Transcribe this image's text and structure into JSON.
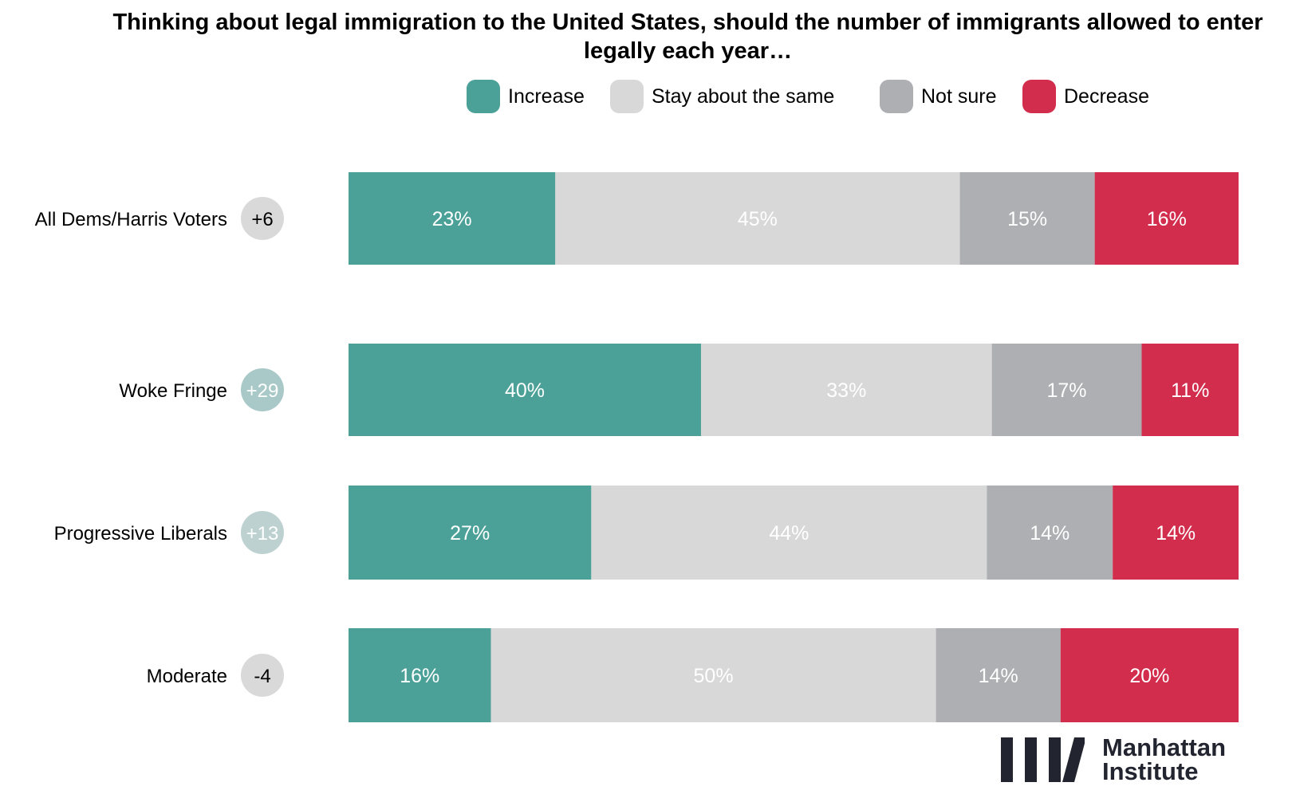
{
  "chart_data": {
    "type": "bar",
    "orientation": "horizontal-stacked-100",
    "title": "Thinking about legal immigration to the United States, should the number of immigrants allowed to enter legally each year…",
    "xlabel": "",
    "ylabel": "",
    "xlim": [
      0,
      100
    ],
    "grid": false,
    "legend_position": "top-center",
    "categories": [
      "All Dems/Harris Voters",
      "Woke Fringe",
      "Progressive Liberals",
      "Moderate"
    ],
    "net_badges": [
      {
        "label": "+6",
        "color": "#d9d9d9",
        "text_color": "#000000"
      },
      {
        "label": "+29",
        "color": "#a8c9c7",
        "text_color": "#ffffff"
      },
      {
        "label": "+13",
        "color": "#bdd1d1",
        "text_color": "#ffffff"
      },
      {
        "label": "-4",
        "color": "#d9d9d9",
        "text_color": "#000000"
      }
    ],
    "series": [
      {
        "name": "Increase",
        "color": "#4ba198",
        "values": [
          23,
          40,
          27,
          16
        ],
        "labels": [
          "23%",
          "40%",
          "27%",
          "16%"
        ]
      },
      {
        "name": "Stay about the same",
        "color": "#d8d8d8",
        "values": [
          45,
          33,
          44,
          50
        ],
        "labels": [
          "45%",
          "33%",
          "44%",
          "50%"
        ]
      },
      {
        "name": "Not sure",
        "color": "#aeafb3",
        "values": [
          15,
          17,
          14,
          14
        ],
        "labels": [
          "15%",
          "17%",
          "14%",
          "14%"
        ]
      },
      {
        "name": "Decrease",
        "color": "#d22d4d",
        "values": [
          16,
          11,
          14,
          20
        ],
        "labels": [
          "16%",
          "11%",
          "14%",
          "20%"
        ]
      }
    ]
  },
  "branding": {
    "logo_line1": "Manhattan",
    "logo_line2": "Institute",
    "logo_color": "#22252f"
  }
}
